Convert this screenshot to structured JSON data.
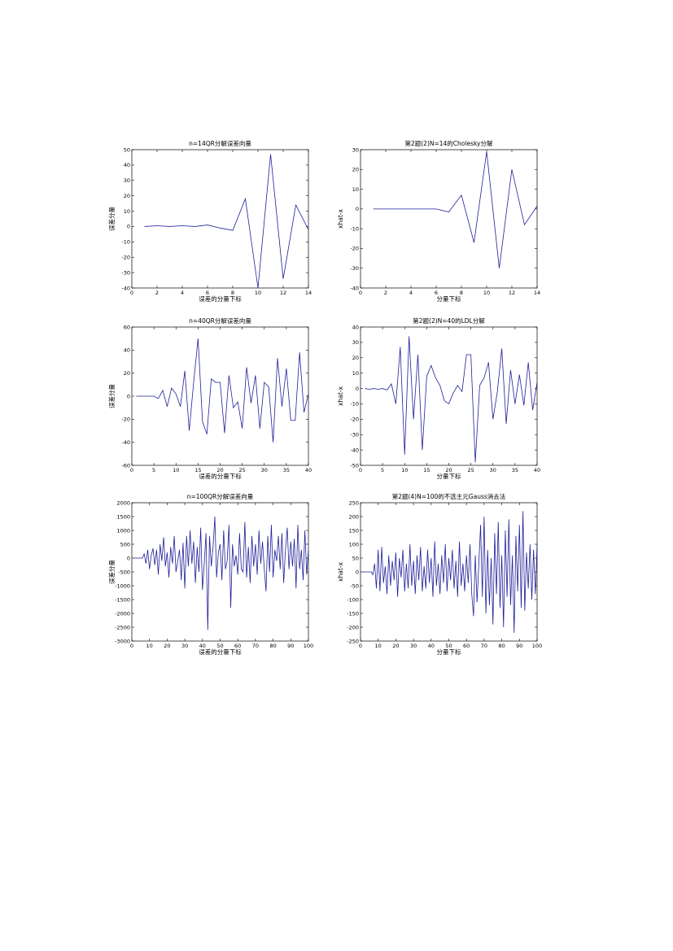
{
  "page": {
    "background": "#ffffff"
  },
  "chart_data": [
    {
      "type": "line",
      "title": "n=14QR分解误差向量",
      "xlabel": "误差的分量下标",
      "ylabel": "误差分量",
      "xlim": [
        0,
        14
      ],
      "ylim": [
        -40,
        50
      ],
      "xticks": [
        0,
        2,
        4,
        6,
        8,
        10,
        12,
        14
      ],
      "yticks": [
        -40,
        -30,
        -20,
        -10,
        0,
        10,
        20,
        30,
        40,
        50
      ],
      "grid": false,
      "color": "#1f1f9a",
      "series": [
        {
          "x": [
            1,
            2,
            3,
            4,
            5,
            6,
            7,
            8,
            9,
            10,
            11,
            12,
            13,
            14
          ],
          "y": [
            0,
            0.5,
            0,
            0.5,
            0,
            1,
            -1,
            -2.5,
            18,
            -40,
            47,
            -34,
            14,
            -2
          ]
        }
      ]
    },
    {
      "type": "line",
      "title": "第2题(2)N=14的Cholesky分解",
      "xlabel": "分量下标",
      "ylabel": "xhat-x",
      "xlim": [
        0,
        14
      ],
      "ylim": [
        -40,
        30
      ],
      "xticks": [
        0,
        2,
        4,
        6,
        8,
        10,
        12,
        14
      ],
      "yticks": [
        -40,
        -30,
        -20,
        -10,
        0,
        10,
        20,
        30
      ],
      "grid": false,
      "color": "#1f1f9a",
      "series": [
        {
          "x": [
            1,
            2,
            3,
            4,
            5,
            6,
            7,
            8,
            9,
            10,
            11,
            12,
            13,
            14
          ],
          "y": [
            0,
            0,
            0,
            0,
            0,
            0,
            -1.5,
            7,
            -17,
            29,
            -30,
            20,
            -8,
            1.5
          ]
        }
      ]
    },
    {
      "type": "line",
      "title": "n=40QR分解误差向量",
      "xlabel": "误差的分量下标",
      "ylabel": "误差分量",
      "xlim": [
        0,
        40
      ],
      "ylim": [
        -60,
        60
      ],
      "xticks": [
        0,
        5,
        10,
        15,
        20,
        25,
        30,
        35,
        40
      ],
      "yticks": [
        -60,
        -40,
        -20,
        0,
        20,
        40,
        60
      ],
      "grid": false,
      "color": "#1f1f9a",
      "series": [
        {
          "x": [
            1,
            2,
            3,
            4,
            5,
            6,
            7,
            8,
            9,
            10,
            11,
            12,
            13,
            14,
            15,
            16,
            17,
            18,
            19,
            20,
            21,
            22,
            23,
            24,
            25,
            26,
            27,
            28,
            29,
            30,
            31,
            32,
            33,
            34,
            35,
            36,
            37,
            38,
            39,
            40
          ],
          "y": [
            0,
            0,
            0,
            0,
            0,
            -2,
            5,
            -9,
            7,
            2,
            -9,
            22,
            -30,
            12,
            50,
            -22,
            -33,
            15,
            12,
            12,
            -32,
            18,
            -10,
            -5,
            -28,
            25,
            -6,
            18,
            -28,
            12,
            8,
            -40,
            33,
            -9,
            24,
            -21,
            -21,
            38,
            -14,
            2
          ]
        }
      ]
    },
    {
      "type": "line",
      "title": "第2题(2)N=40的LDL分解",
      "xlabel": "分量下标",
      "ylabel": "xhat-x",
      "xlim": [
        0,
        40
      ],
      "ylim": [
        -50,
        40
      ],
      "xticks": [
        0,
        5,
        10,
        15,
        20,
        25,
        30,
        35,
        40
      ],
      "yticks": [
        -50,
        -40,
        -30,
        -20,
        -10,
        0,
        10,
        20,
        30,
        40
      ],
      "grid": false,
      "color": "#1f1f9a",
      "series": [
        {
          "x": [
            1,
            2,
            3,
            4,
            5,
            6,
            7,
            8,
            9,
            10,
            11,
            12,
            13,
            14,
            15,
            16,
            17,
            18,
            19,
            20,
            21,
            22,
            23,
            24,
            25,
            26,
            27,
            28,
            29,
            30,
            31,
            32,
            33,
            34,
            35,
            36,
            37,
            38,
            39,
            40
          ],
          "y": [
            0,
            -0.5,
            0,
            -0.5,
            0,
            -1,
            3,
            -10,
            27,
            -43,
            34,
            -20,
            22,
            -40,
            8,
            15,
            7,
            2,
            -8,
            -10,
            -3,
            2,
            -2,
            22,
            22,
            -48,
            2,
            7,
            17,
            -20,
            -2,
            26,
            -23,
            12,
            -10,
            9,
            -11,
            17,
            -14,
            4
          ]
        }
      ]
    },
    {
      "type": "line",
      "title": "n=100QR分解误差向量",
      "xlabel": "误差的分量下标",
      "ylabel": "误差分量",
      "xlim": [
        0,
        100
      ],
      "ylim": [
        -3000,
        2000
      ],
      "xticks": [
        0,
        10,
        20,
        30,
        40,
        50,
        60,
        70,
        80,
        90,
        100
      ],
      "yticks": [
        -3000,
        -2500,
        -2000,
        -1500,
        -1000,
        -500,
        0,
        500,
        1000,
        1500,
        2000
      ],
      "grid": false,
      "color": "#1f1f9a",
      "series": [
        {
          "x": [
            1,
            2,
            3,
            4,
            5,
            6,
            7,
            8,
            9,
            10,
            11,
            12,
            13,
            14,
            15,
            16,
            17,
            18,
            19,
            20,
            21,
            22,
            23,
            24,
            25,
            26,
            27,
            28,
            29,
            30,
            31,
            32,
            33,
            34,
            35,
            36,
            37,
            38,
            39,
            40,
            41,
            42,
            43,
            44,
            45,
            46,
            47,
            48,
            49,
            50,
            51,
            52,
            53,
            54,
            55,
            56,
            57,
            58,
            59,
            60,
            61,
            62,
            63,
            64,
            65,
            66,
            67,
            68,
            69,
            70,
            71,
            72,
            73,
            74,
            75,
            76,
            77,
            78,
            79,
            80,
            81,
            82,
            83,
            84,
            85,
            86,
            87,
            88,
            89,
            90,
            91,
            92,
            93,
            94,
            95,
            96,
            97,
            98,
            99,
            100
          ],
          "y": [
            0,
            0,
            0,
            0,
            0,
            0,
            150,
            -200,
            300,
            -400,
            100,
            350,
            -250,
            300,
            -600,
            500,
            -100,
            750,
            -300,
            200,
            -700,
            400,
            -200,
            800,
            -500,
            -100,
            300,
            -800,
            550,
            -1100,
            800,
            -300,
            1000,
            -200,
            600,
            -900,
            400,
            -500,
            1100,
            -1150,
            -200,
            900,
            -2600,
            800,
            -300,
            400,
            1500,
            -700,
            200,
            500,
            -800,
            1000,
            -400,
            -100,
            1200,
            -1800,
            500,
            -300,
            100,
            -600,
            900,
            -400,
            -500,
            1300,
            -700,
            400,
            -900,
            800,
            -300,
            500,
            -600,
            1000,
            -200,
            600,
            -400,
            -1200,
            800,
            -500,
            1200,
            -700,
            300,
            -100,
            800,
            -400,
            900,
            -900,
            300,
            1100,
            -400,
            600,
            -300,
            700,
            -1100,
            1200,
            -400,
            300,
            -800,
            1000,
            -600,
            300
          ]
        }
      ]
    },
    {
      "type": "line",
      "title": "第2题(4)N=100的不选主元Gauss消去法",
      "xlabel": "分量下标",
      "ylabel": "xhat-x",
      "xlim": [
        0,
        100
      ],
      "ylim": [
        -250,
        250
      ],
      "xticks": [
        0,
        10,
        20,
        30,
        40,
        50,
        60,
        70,
        80,
        90,
        100
      ],
      "yticks": [
        -250,
        -200,
        -150,
        -100,
        -50,
        0,
        50,
        100,
        150,
        200,
        250
      ],
      "grid": false,
      "color": "#1f1f9a",
      "series": [
        {
          "x": [
            1,
            2,
            3,
            4,
            5,
            6,
            7,
            8,
            9,
            10,
            11,
            12,
            13,
            14,
            15,
            16,
            17,
            18,
            19,
            20,
            21,
            22,
            23,
            24,
            25,
            26,
            27,
            28,
            29,
            30,
            31,
            32,
            33,
            34,
            35,
            36,
            37,
            38,
            39,
            40,
            41,
            42,
            43,
            44,
            45,
            46,
            47,
            48,
            49,
            50,
            51,
            52,
            53,
            54,
            55,
            56,
            57,
            58,
            59,
            60,
            61,
            62,
            63,
            64,
            65,
            66,
            67,
            68,
            69,
            70,
            71,
            72,
            73,
            74,
            75,
            76,
            77,
            78,
            79,
            80,
            81,
            82,
            83,
            84,
            85,
            86,
            87,
            88,
            89,
            90,
            91,
            92,
            93,
            94,
            95,
            96,
            97,
            98,
            99,
            100
          ],
          "y": [
            0,
            0,
            0,
            0,
            0,
            0,
            -10,
            30,
            -60,
            80,
            -70,
            90,
            -40,
            20,
            -80,
            60,
            -50,
            40,
            -30,
            70,
            -90,
            50,
            -20,
            80,
            -70,
            30,
            -60,
            100,
            -50,
            40,
            -80,
            60,
            -30,
            90,
            -70,
            20,
            -60,
            80,
            -40,
            50,
            -90,
            110,
            -50,
            30,
            -80,
            60,
            -40,
            100,
            -70,
            50,
            -30,
            80,
            -60,
            40,
            -90,
            110,
            -50,
            30,
            -70,
            60,
            -40,
            100,
            -80,
            -160,
            60,
            -110,
            30,
            170,
            -90,
            200,
            -150,
            80,
            -120,
            50,
            -190,
            140,
            -80,
            180,
            -130,
            60,
            -200,
            150,
            -90,
            190,
            -120,
            60,
            -220,
            130,
            -70,
            170,
            -130,
            220,
            -140,
            70,
            -60,
            100,
            -100,
            80,
            -80,
            100
          ]
        }
      ]
    }
  ]
}
